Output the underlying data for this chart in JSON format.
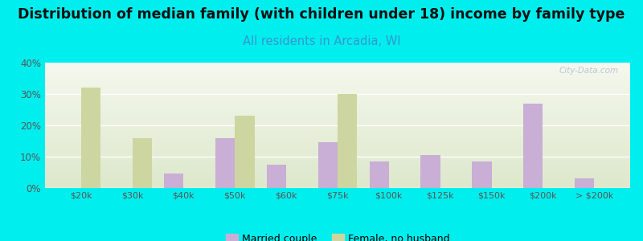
{
  "title": "Distribution of median family (with children under 18) income by family type",
  "subtitle": "All residents in Arcadia, WI",
  "categories": [
    "$20k",
    "$30k",
    "$40k",
    "$50k",
    "$60k",
    "$75k",
    "$100k",
    "$125k",
    "$150k",
    "$200k",
    "> $200k"
  ],
  "married_couple": [
    0,
    0,
    4.5,
    16.0,
    7.5,
    14.5,
    8.5,
    10.5,
    8.5,
    27.0,
    3.0
  ],
  "female_no_husband": [
    32.0,
    16.0,
    0,
    23.0,
    0,
    30.0,
    0,
    0,
    0,
    0,
    0
  ],
  "married_color": "#c9aed5",
  "female_color": "#cdd6a0",
  "background_color": "#00eeee",
  "ylim": [
    0,
    40
  ],
  "yticks": [
    0,
    10,
    20,
    30,
    40
  ],
  "bar_width": 0.38,
  "title_fontsize": 12.5,
  "subtitle_fontsize": 10.5,
  "subtitle_color": "#3399cc",
  "title_color": "#111111",
  "tick_color": "#555555",
  "grid_color": "#ffffff",
  "watermark_color": "#b8c8d4",
  "plot_bg_top": "#f5f8ee",
  "plot_bg_bottom": "#dde8cc"
}
